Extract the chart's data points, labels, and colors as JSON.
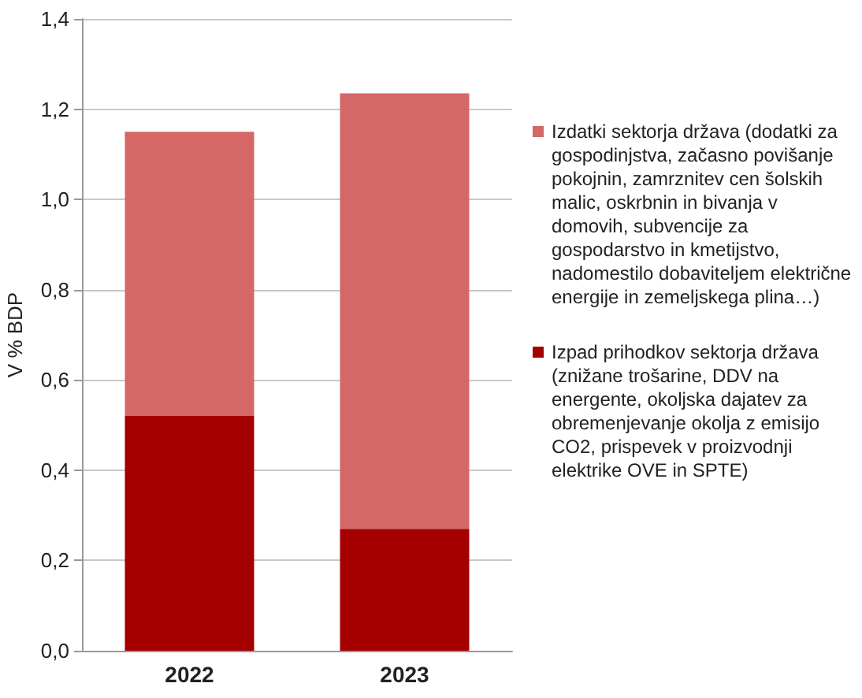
{
  "chart_data": {
    "type": "bar",
    "ylabel": "V % BDP",
    "categories": [
      "2022",
      "2023"
    ],
    "stacked": true,
    "series": [
      {
        "name": "Izpad prihodkov sektorja država (znižane trošarine, DDV na energente, okoljska dajatev za obremenjevanje okolja z emisijo CO2, prispevek v proizvodnji elektrike OVE in SPTE)",
        "color": "#a50000",
        "values": [
          0.52,
          0.27
        ]
      },
      {
        "name": "Izdatki sektorja država (dodatki za gospodinjstva, začasno povišanje pokojnin, zamrznitev cen šolskih malic, oskrbnin in bivanja v domovih, subvencije za gospodarstvo in kmetijstvo, nadomestilo dobaviteljem električne energije in zemeljskega plina…)",
        "color": "#d56767",
        "values": [
          0.63,
          0.965
        ]
      }
    ],
    "ylim": [
      0,
      1.4
    ],
    "yticks": [
      {
        "value": 0,
        "label": "0,0"
      },
      {
        "value": 0.2,
        "label": "0,2"
      },
      {
        "value": 0.4,
        "label": "0,4"
      },
      {
        "value": 0.6,
        "label": "0,6"
      },
      {
        "value": 0.8,
        "label": "0,8"
      },
      {
        "value": 1.0,
        "label": "1,0"
      },
      {
        "value": 1.2,
        "label": "1,2"
      },
      {
        "value": 1.4,
        "label": "1,4"
      }
    ],
    "grid": "y",
    "legend": "right"
  }
}
